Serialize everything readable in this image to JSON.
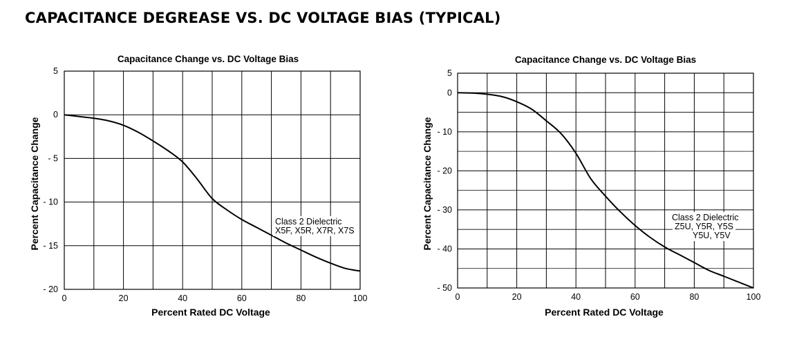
{
  "page": {
    "title": "CAPACITANCE DEGREASE VS. DC VOLTAGE BIAS (TYPICAL)"
  },
  "chart_data": [
    {
      "type": "line",
      "title": "Capacitance Change vs. DC Voltage Bias",
      "xlabel": "Percent Rated DC Voltage",
      "ylabel": "Percent Capacitance Change",
      "xlim": [
        0,
        100
      ],
      "ylim": [
        -20,
        5
      ],
      "x_ticks": [
        0,
        20,
        40,
        60,
        80,
        100
      ],
      "y_ticks": [
        5,
        0,
        -5,
        -10,
        -15,
        -20
      ],
      "x_tick_labels": [
        "0",
        "20",
        "40",
        "60",
        "80",
        "100"
      ],
      "y_tick_labels": [
        "5",
        "0",
        "- 5",
        "- 10",
        "- 15",
        "- 20"
      ],
      "grid": true,
      "series": [
        {
          "x": [
            0,
            5,
            10,
            15,
            20,
            25,
            30,
            35,
            40,
            45,
            50,
            55,
            60,
            65,
            70,
            75,
            80,
            85,
            90,
            95,
            100
          ],
          "y": [
            0,
            -0.2,
            -0.4,
            -0.7,
            -1.2,
            -2.0,
            -3.0,
            -4.1,
            -5.4,
            -7.4,
            -9.6,
            -10.9,
            -12.0,
            -12.9,
            -13.8,
            -14.7,
            -15.5,
            -16.3,
            -17.0,
            -17.6,
            -17.9
          ]
        }
      ],
      "annotation": {
        "lines": [
          "Class 2 Dielectric",
          "X5F, X5R, X7R, X7S"
        ]
      }
    },
    {
      "type": "line",
      "title": "Capacitance Change vs. DC Voltage Bias",
      "xlabel": "Percent Rated DC Voltage",
      "ylabel": "Percent Capacitance Change",
      "xlim": [
        0,
        100
      ],
      "ylim": [
        -50,
        5
      ],
      "x_ticks": [
        0,
        20,
        40,
        60,
        80,
        100
      ],
      "y_ticks": [
        5,
        0,
        -10,
        -20,
        -30,
        -40,
        -50
      ],
      "x_tick_labels": [
        "0",
        "20",
        "40",
        "60",
        "80",
        "100"
      ],
      "y_tick_labels": [
        "5",
        "0",
        "- 10",
        "- 20",
        "- 30",
        "- 40",
        "- 50"
      ],
      "grid": true,
      "series": [
        {
          "x": [
            0,
            5,
            10,
            15,
            20,
            25,
            30,
            35,
            40,
            45,
            50,
            55,
            60,
            65,
            70,
            75,
            80,
            85,
            90,
            95,
            100
          ],
          "y": [
            0,
            -0.1,
            -0.4,
            -1.0,
            -2.3,
            -4.2,
            -7.2,
            -10.5,
            -15.5,
            -22.0,
            -26.5,
            -30.5,
            -34.0,
            -37.0,
            -39.5,
            -41.5,
            -43.5,
            -45.5,
            -47.0,
            -48.5,
            -50.0
          ]
        }
      ],
      "annotation": {
        "lines": [
          "Class 2 Dielectric",
          "Z5U, Y5R, Y5S",
          "Y5U, Y5V"
        ]
      }
    }
  ]
}
